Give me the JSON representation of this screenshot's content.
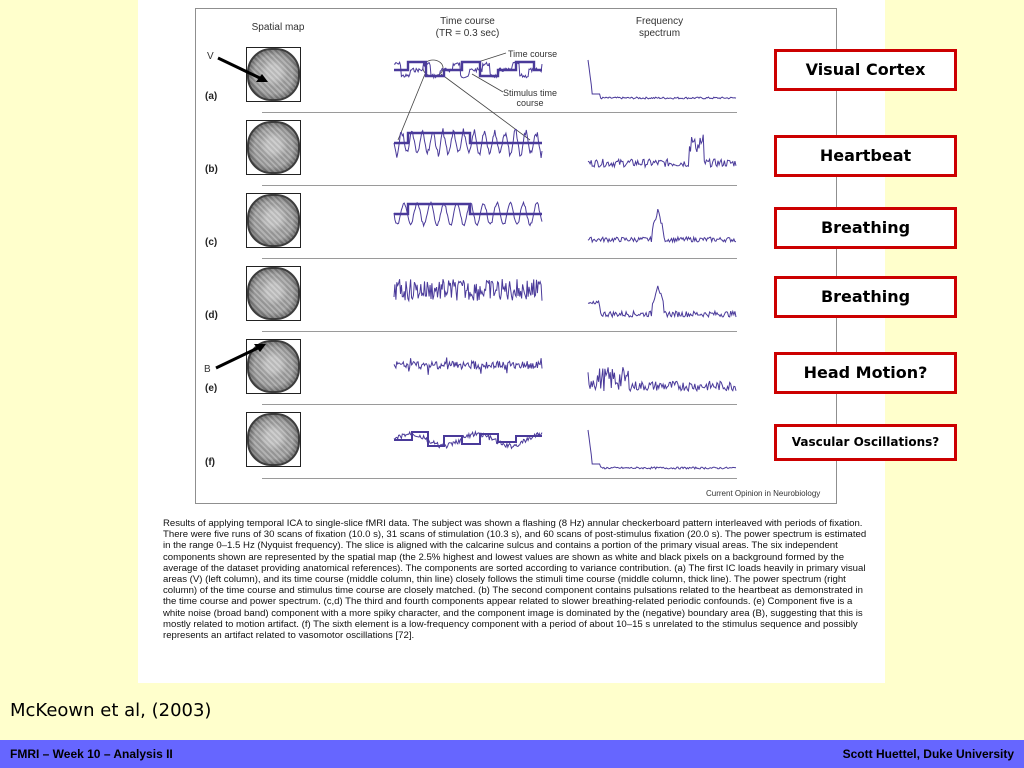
{
  "figure": {
    "column_headers": {
      "spatial": "Spatial map",
      "time": "Time course\n(TR = 0.3 sec)",
      "frequency": "Frequency\nspectrum"
    },
    "rows": [
      {
        "label": "(a)"
      },
      {
        "label": "(b)"
      },
      {
        "label": "(c)"
      },
      {
        "label": "(d)"
      },
      {
        "label": "(e)"
      },
      {
        "label": "(f)"
      }
    ],
    "annotations": {
      "time_course": "Time course",
      "stimulus": "Stimulus time\ncourse",
      "v_marker": "V",
      "b_marker": "B"
    },
    "journal": "Current Opinion in Neurobiology",
    "caption": "Results of applying temporal ICA to single-slice fMRI data. The subject was shown a flashing (8 Hz) annular checkerboard pattern interleaved with periods of fixation. There were five runs of 30 scans of fixation (10.0 s), 31 scans of stimulation (10.3 s), and 60 scans of post-stimulus fixation (20.0 s). The power spectrum is estimated in the range 0–1.5 Hz (Nyquist frequency). The slice is aligned with the calcarine sulcus and contains a portion of the primary visual areas. The six independent components shown are represented by the spatial map (the 2.5% highest and lowest values are shown as white and black pixels on a background formed by the average of the dataset providing anatomical references). The components are sorted according to variance contribution. (a) The first IC loads heavily in primary visual areas (V) (left column), and its time course (middle column, thin line) closely follows the stimuli time course (middle column, thick line). The power spectrum (right column) of the time course and stimulus time course are closely matched. (b) The second component contains pulsations related to the heartbeat as demonstrated in the time course and power spectrum. (c,d) The third and fourth components appear related to slower breathing-related periodic confounds. (e) Component five is a white noise (broad band) component with a more spiky character, and the component image is dominated by the (negative) boundary area (B), suggesting that this is mostly related to motion artifact. (f) The sixth element is a low-frequency component with a period of about 10–15 s unrelated to the stimulus sequence and possibly represents an artifact related to vasomotor oscillations [72]."
  },
  "labels": [
    {
      "text": "Visual Cortex"
    },
    {
      "text": "Heartbeat"
    },
    {
      "text": "Breathing"
    },
    {
      "text": "Breathing"
    },
    {
      "text": "Head Motion?"
    },
    {
      "text": "Vascular Oscillations?"
    }
  ],
  "citation": "McKeown et al, (2003)",
  "footer": {
    "left": "FMRI – Week 10 – Analysis II",
    "right": "Scott Huettel, Duke University"
  },
  "colors": {
    "background": "#ffffcc",
    "footer_bar": "#6666ff",
    "label_border": "#cc0000",
    "signal": "#4a3a9a"
  }
}
